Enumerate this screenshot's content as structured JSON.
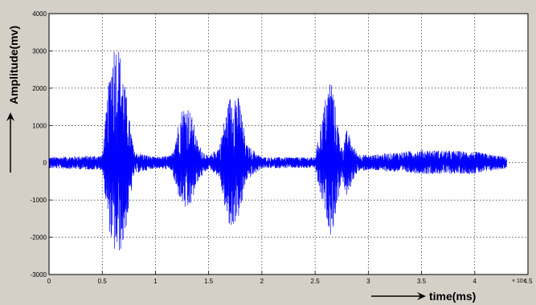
{
  "chart_data": {
    "type": "line",
    "xlabel": "time(ms)",
    "ylabel": "Amplitude(mv)",
    "x_exponent_label": "× 10⁴",
    "xlim": [
      0,
      4.5
    ],
    "ylim": [
      -3000,
      4000
    ],
    "grid": true,
    "x_ticks": [
      "0",
      "0.5",
      "1",
      "1.5",
      "2",
      "2.5",
      "3",
      "3.5",
      "4",
      "4.5"
    ],
    "y_ticks": [
      "-3000",
      "-2000",
      "-1000",
      "0",
      "1000",
      "2000",
      "3000",
      "4000"
    ],
    "series": [
      {
        "color": "#0000ff",
        "envelope": {
          "x": [
            0.0,
            0.5,
            0.55,
            0.6,
            0.65,
            0.7,
            0.75,
            0.8,
            1.0,
            1.15,
            1.2,
            1.25,
            1.3,
            1.35,
            1.4,
            1.5,
            1.6,
            1.65,
            1.7,
            1.75,
            1.8,
            1.85,
            2.0,
            2.5,
            2.55,
            2.6,
            2.65,
            2.7,
            2.75,
            2.8,
            2.85,
            2.9,
            3.0,
            3.5,
            4.0,
            4.3
          ],
          "max": [
            150,
            200,
            1800,
            3300,
            3250,
            2400,
            1300,
            300,
            150,
            200,
            900,
            1500,
            1600,
            1200,
            500,
            150,
            450,
            1200,
            1800,
            2000,
            1600,
            500,
            150,
            150,
            1000,
            1800,
            2400,
            1300,
            400,
            900,
            500,
            250,
            200,
            350,
            300,
            150
          ],
          "min": [
            -150,
            -200,
            -1500,
            -2400,
            -2500,
            -2200,
            -1300,
            -300,
            -150,
            -200,
            -800,
            -1100,
            -1400,
            -1000,
            -500,
            -150,
            -400,
            -1200,
            -1900,
            -1600,
            -1400,
            -500,
            -150,
            -150,
            -900,
            -1400,
            -2000,
            -1300,
            -400,
            -1000,
            -500,
            -250,
            -200,
            -300,
            -300,
            -150
          ]
        }
      }
    ]
  }
}
